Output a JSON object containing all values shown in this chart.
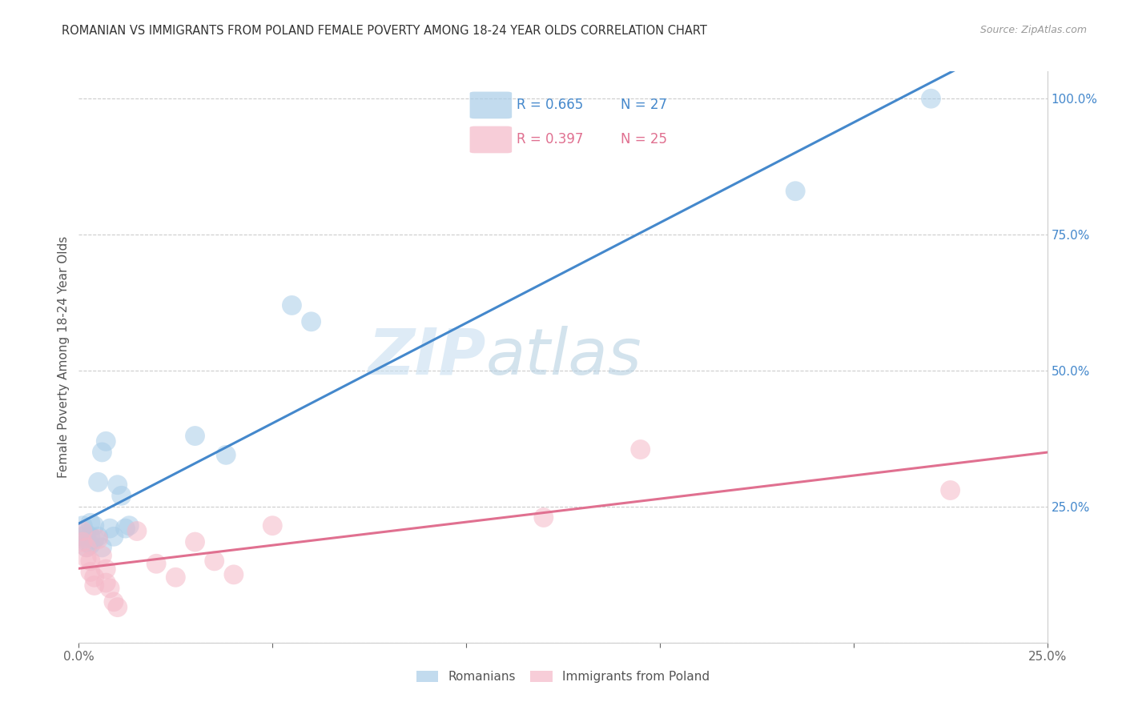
{
  "title": "ROMANIAN VS IMMIGRANTS FROM POLAND FEMALE POVERTY AMONG 18-24 YEAR OLDS CORRELATION CHART",
  "source": "Source: ZipAtlas.com",
  "ylabel": "Female Poverty Among 18-24 Year Olds",
  "blue_R": 0.665,
  "blue_N": 27,
  "pink_R": 0.397,
  "pink_N": 25,
  "blue_label": "Romanians",
  "pink_label": "Immigrants from Poland",
  "blue_color": "#a8cce8",
  "blue_line_color": "#4488cc",
  "pink_color": "#f5b8c8",
  "pink_line_color": "#e07090",
  "watermark_zip": "ZIP",
  "watermark_atlas": "atlas",
  "background_color": "#ffffff",
  "blue_x": [
    0.001,
    0.001,
    0.002,
    0.002,
    0.002,
    0.003,
    0.003,
    0.003,
    0.004,
    0.004,
    0.005,
    0.005,
    0.006,
    0.006,
    0.007,
    0.008,
    0.009,
    0.01,
    0.011,
    0.012,
    0.013,
    0.03,
    0.038,
    0.055,
    0.06,
    0.185,
    0.22
  ],
  "blue_y": [
    0.215,
    0.195,
    0.2,
    0.185,
    0.175,
    0.22,
    0.195,
    0.18,
    0.215,
    0.19,
    0.295,
    0.195,
    0.35,
    0.175,
    0.37,
    0.21,
    0.195,
    0.29,
    0.27,
    0.21,
    0.215,
    0.38,
    0.345,
    0.62,
    0.59,
    0.83,
    1.0
  ],
  "pink_x": [
    0.001,
    0.001,
    0.002,
    0.002,
    0.003,
    0.003,
    0.004,
    0.004,
    0.005,
    0.006,
    0.007,
    0.007,
    0.008,
    0.009,
    0.01,
    0.015,
    0.02,
    0.025,
    0.03,
    0.035,
    0.04,
    0.05,
    0.12,
    0.145,
    0.225
  ],
  "pink_y": [
    0.205,
    0.185,
    0.175,
    0.155,
    0.15,
    0.13,
    0.12,
    0.105,
    0.19,
    0.16,
    0.135,
    0.11,
    0.1,
    0.075,
    0.065,
    0.205,
    0.145,
    0.12,
    0.185,
    0.15,
    0.125,
    0.215,
    0.23,
    0.355,
    0.28
  ],
  "xlim": [
    0,
    0.25
  ],
  "ylim": [
    0,
    1.05
  ],
  "x_ticks": [
    0.0,
    0.05,
    0.1,
    0.15,
    0.2,
    0.25
  ],
  "y_ticks": [
    0.0,
    0.25,
    0.5,
    0.75,
    1.0
  ],
  "y_tick_labels": [
    "",
    "25.0%",
    "50.0%",
    "75.0%",
    "100.0%"
  ],
  "scatter_size": 320
}
